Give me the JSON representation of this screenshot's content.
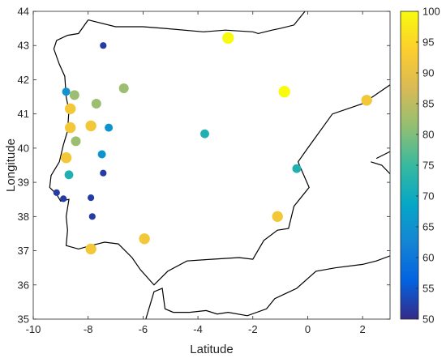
{
  "chart_data": {
    "type": "scatter",
    "xlabel": "Latitude",
    "ylabel": "Longitude",
    "xlim": [
      -10,
      3
    ],
    "ylim": [
      35,
      44
    ],
    "xticks": [
      -10,
      -8,
      -6,
      -4,
      -2,
      0,
      2
    ],
    "xtick_labels": [
      "-10",
      "-8",
      "-6",
      "-4",
      "-2",
      "0",
      "2"
    ],
    "yticks": [
      35,
      36,
      37,
      38,
      39,
      40,
      41,
      42,
      43,
      44
    ],
    "ytick_labels": [
      "35",
      "36",
      "37",
      "38",
      "39",
      "40",
      "41",
      "42",
      "43",
      "44"
    ],
    "colorbar": {
      "range": [
        50,
        100
      ],
      "ticks": [
        50,
        55,
        60,
        65,
        70,
        75,
        80,
        85,
        90,
        95,
        100
      ],
      "tick_labels": [
        "50",
        "55",
        "60",
        "65",
        "70",
        "75",
        "80",
        "85",
        "90",
        "95",
        "100"
      ],
      "colormap": "parula"
    },
    "grid": false,
    "points": [
      {
        "x": -7.45,
        "y": 43.0,
        "value": 52
      },
      {
        "x": -2.9,
        "y": 43.22,
        "value": 100
      },
      {
        "x": -8.8,
        "y": 41.65,
        "value": 65
      },
      {
        "x": -8.5,
        "y": 41.55,
        "value": 82
      },
      {
        "x": -6.7,
        "y": 41.75,
        "value": 82
      },
      {
        "x": -7.7,
        "y": 41.3,
        "value": 82
      },
      {
        "x": -0.85,
        "y": 41.65,
        "value": 100
      },
      {
        "x": 2.15,
        "y": 41.4,
        "value": 92
      },
      {
        "x": -8.65,
        "y": 41.15,
        "value": 92
      },
      {
        "x": -8.65,
        "y": 40.6,
        "value": 92
      },
      {
        "x": -7.9,
        "y": 40.65,
        "value": 92
      },
      {
        "x": -7.25,
        "y": 40.6,
        "value": 65
      },
      {
        "x": -3.75,
        "y": 40.42,
        "value": 72
      },
      {
        "x": -8.45,
        "y": 40.2,
        "value": 82
      },
      {
        "x": -7.5,
        "y": 39.82,
        "value": 65
      },
      {
        "x": -8.8,
        "y": 39.72,
        "value": 92
      },
      {
        "x": -0.4,
        "y": 39.4,
        "value": 72
      },
      {
        "x": -8.7,
        "y": 39.22,
        "value": 72
      },
      {
        "x": -7.45,
        "y": 39.27,
        "value": 52
      },
      {
        "x": -9.15,
        "y": 38.7,
        "value": 52
      },
      {
        "x": -8.9,
        "y": 38.52,
        "value": 52
      },
      {
        "x": -7.9,
        "y": 38.55,
        "value": 52
      },
      {
        "x": -7.85,
        "y": 38.0,
        "value": 52
      },
      {
        "x": -1.1,
        "y": 38.0,
        "value": 92
      },
      {
        "x": -5.95,
        "y": 37.35,
        "value": 92
      },
      {
        "x": -7.9,
        "y": 37.05,
        "value": 92
      }
    ],
    "coastline": [
      [
        [
          -8.0,
          43.75
        ],
        [
          -7.0,
          43.55
        ],
        [
          -6.0,
          43.55
        ],
        [
          -5.2,
          43.5
        ],
        [
          -3.8,
          43.4
        ],
        [
          -3.0,
          43.45
        ],
        [
          -2.0,
          43.4
        ],
        [
          -1.8,
          43.35
        ],
        [
          -1.3,
          43.45
        ],
        [
          -1.0,
          43.5
        ],
        [
          -0.5,
          43.6
        ],
        [
          -0.3,
          43.8
        ],
        [
          -0.1,
          44.0
        ]
      ],
      [
        [
          -8.0,
          43.75
        ],
        [
          -8.35,
          43.35
        ],
        [
          -8.75,
          43.3
        ],
        [
          -9.15,
          43.15
        ],
        [
          -9.25,
          42.9
        ],
        [
          -9.05,
          42.45
        ],
        [
          -8.85,
          42.1
        ],
        [
          -8.8,
          41.5
        ],
        [
          -8.7,
          41.1
        ],
        [
          -8.75,
          40.5
        ],
        [
          -8.9,
          40.1
        ],
        [
          -9.05,
          39.6
        ],
        [
          -9.35,
          39.2
        ],
        [
          -9.4,
          38.85
        ],
        [
          -9.15,
          38.65
        ],
        [
          -9.0,
          38.45
        ],
        [
          -8.7,
          38.5
        ],
        [
          -8.8,
          38.0
        ],
        [
          -8.75,
          37.6
        ],
        [
          -8.8,
          37.15
        ],
        [
          -8.35,
          37.05
        ],
        [
          -7.9,
          37.15
        ],
        [
          -7.4,
          37.25
        ],
        [
          -6.9,
          37.2
        ],
        [
          -6.4,
          36.8
        ],
        [
          -6.1,
          36.45
        ],
        [
          -5.6,
          36.0
        ],
        [
          -5.1,
          36.4
        ],
        [
          -4.4,
          36.7
        ],
        [
          -3.5,
          36.75
        ],
        [
          -2.5,
          36.8
        ],
        [
          -2.0,
          36.75
        ],
        [
          -1.6,
          37.3
        ],
        [
          -1.1,
          37.6
        ],
        [
          -0.7,
          37.65
        ],
        [
          -0.5,
          38.3
        ],
        [
          0.05,
          38.85
        ],
        [
          -0.3,
          39.5
        ],
        [
          -0.35,
          39.6
        ],
        [
          0.0,
          40.0
        ],
        [
          0.9,
          41.0
        ],
        [
          2.0,
          41.3
        ],
        [
          3.0,
          41.85
        ]
      ],
      [
        [
          2.3,
          39.6
        ],
        [
          2.7,
          39.5
        ],
        [
          3.0,
          39.25
        ]
      ],
      [
        [
          2.5,
          39.7
        ],
        [
          3.0,
          39.9
        ]
      ],
      [
        [
          -5.9,
          35.0
        ],
        [
          -5.6,
          35.8
        ],
        [
          -5.3,
          35.9
        ],
        [
          -5.2,
          35.3
        ],
        [
          -4.9,
          35.2
        ],
        [
          -4.3,
          35.2
        ],
        [
          -3.7,
          35.25
        ],
        [
          -3.3,
          35.15
        ],
        [
          -2.9,
          35.2
        ],
        [
          -2.2,
          35.1
        ],
        [
          -1.5,
          35.3
        ],
        [
          -1.2,
          35.6
        ],
        [
          -0.8,
          35.75
        ],
        [
          -0.4,
          35.9
        ],
        [
          0.3,
          36.4
        ],
        [
          1.0,
          36.5
        ],
        [
          2.0,
          36.6
        ],
        [
          2.5,
          36.7
        ],
        [
          3.0,
          36.85
        ]
      ]
    ]
  }
}
